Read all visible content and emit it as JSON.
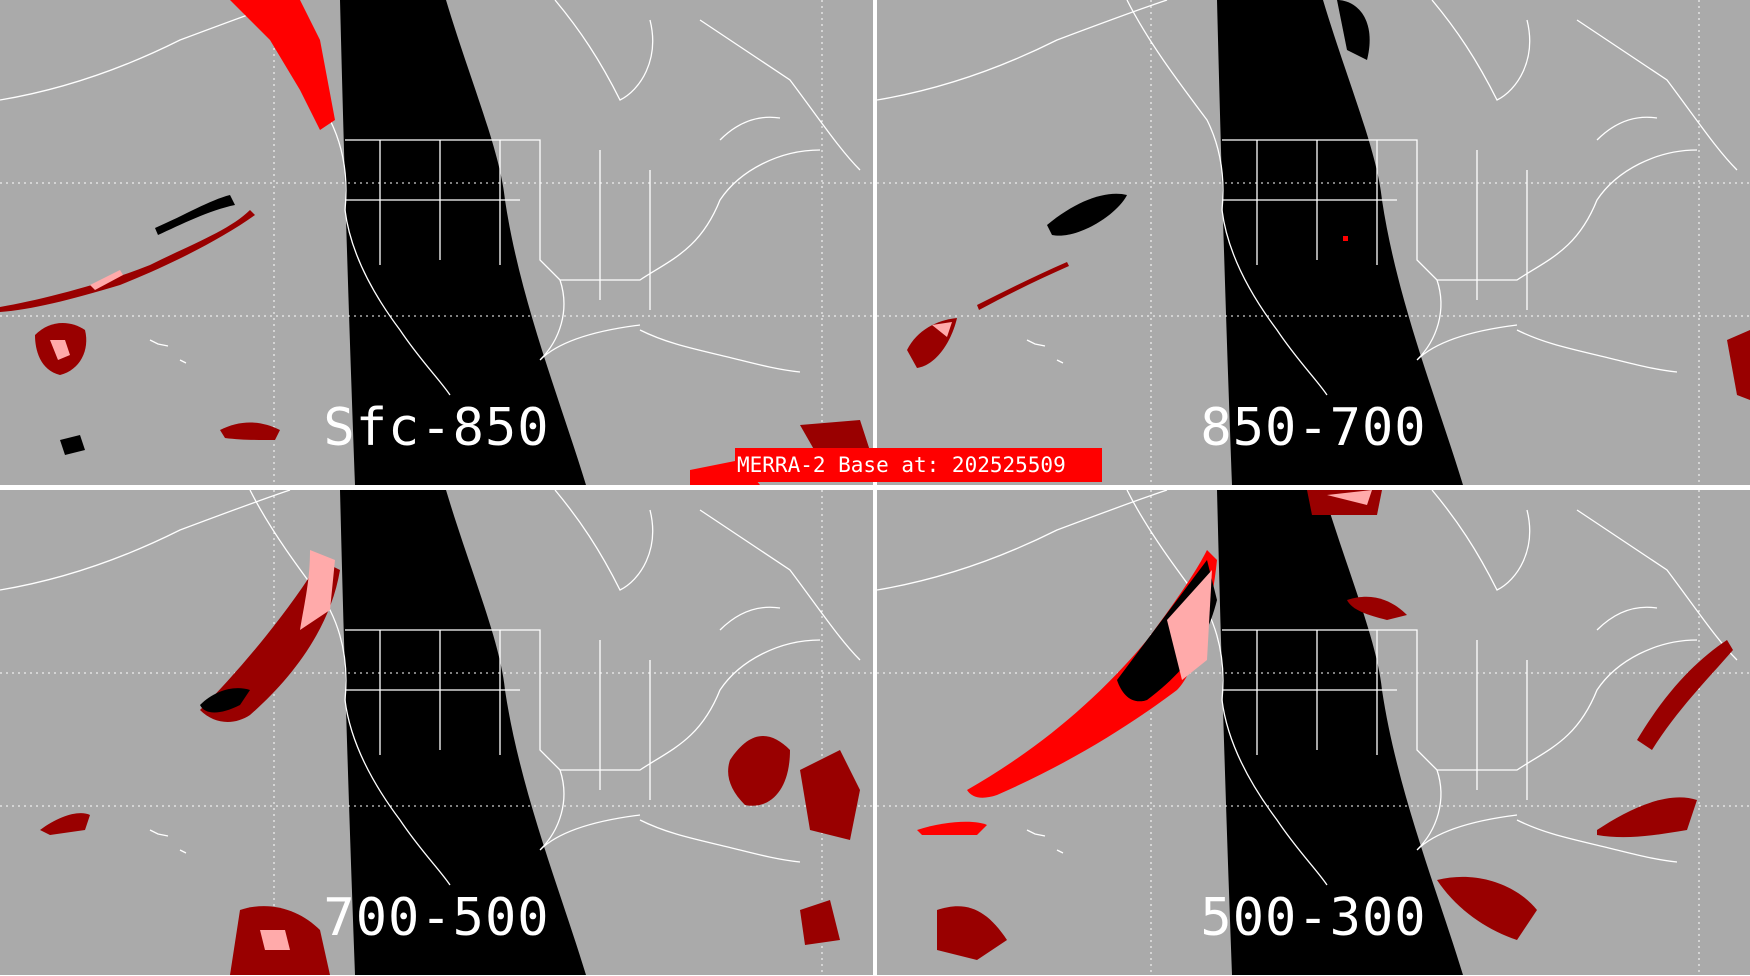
{
  "title_banner": "MERRA-2 Base at: 202525509",
  "panels": [
    {
      "label": "Sfc-850"
    },
    {
      "label": "850-700"
    },
    {
      "label": "700-500"
    },
    {
      "label": "500-300"
    }
  ],
  "colors": {
    "background": "#aaaaaa",
    "no_data_swath": "#000000",
    "coastlines": "#ffffff",
    "cloud_dark_red": "#990000",
    "cloud_red": "#ff0000",
    "cloud_pink": "#ffaaaa",
    "banner": "#ff0000"
  }
}
